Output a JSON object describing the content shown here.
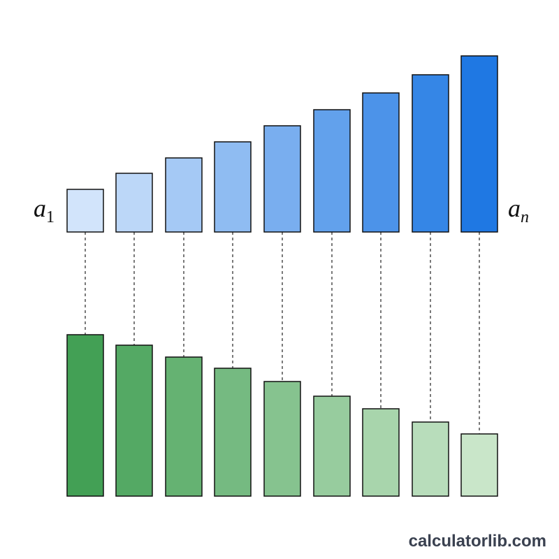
{
  "labels": {
    "first": {
      "base": "a",
      "sub": "1"
    },
    "last": {
      "base": "a",
      "sub": "n"
    }
  },
  "footer": {
    "watermark": "calculatorlib.com"
  }
}
